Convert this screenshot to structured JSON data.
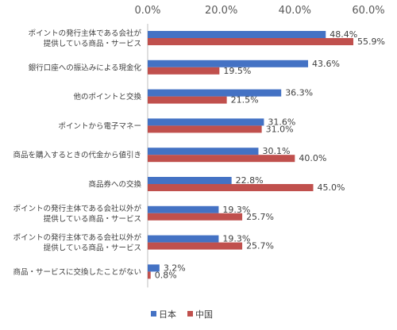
{
  "chart_data": {
    "type": "bar",
    "orientation": "horizontal",
    "categories": [
      [
        "ポイントの発行主体である会社が",
        "提供している商品・サービス"
      ],
      [
        "銀行口座への振込みによる現金化"
      ],
      [
        "他のポイントと交換"
      ],
      [
        "ポイントから電子マネー"
      ],
      [
        "商品を購入するときの代金から値引き"
      ],
      [
        "商品券への交換"
      ],
      [
        "ポイントの発行主体である会社以外が",
        "提供している商品・サービス"
      ],
      [
        "ポイントの発行主体である会社以外が",
        "提供している商品・サービス"
      ],
      [
        "商品・サービスに交換したことがない"
      ]
    ],
    "series": [
      {
        "name": "日本",
        "color": "#4472C4",
        "values": [
          48.4,
          43.6,
          36.3,
          31.6,
          30.1,
          22.8,
          19.3,
          19.3,
          3.2
        ]
      },
      {
        "name": "中国",
        "color": "#C0504D",
        "values": [
          55.9,
          19.5,
          21.5,
          31.0,
          40.0,
          45.0,
          25.7,
          25.7,
          0.8
        ]
      }
    ],
    "value_labels": {
      "日本": [
        "48.4%",
        "43.6%",
        "36.3%",
        "31.6%",
        "30.1%",
        "22.8%",
        "19.3%",
        "19.3%",
        "3.2%"
      ],
      "中国": [
        "55.9%",
        "19.5%",
        "21.5%",
        "31.0%",
        "40.0%",
        "45.0%",
        "25.7%",
        "25.7%",
        "0.8%"
      ]
    },
    "xlim": [
      0,
      60
    ],
    "xticks": [
      "0.0%",
      "20.0%",
      "40.0%",
      "60.0%"
    ],
    "xtick_values": [
      0,
      20,
      40,
      60
    ],
    "xaxis_position": "top",
    "grid": false,
    "legend_position": "bottom",
    "title": "",
    "xlabel": "",
    "ylabel": ""
  }
}
